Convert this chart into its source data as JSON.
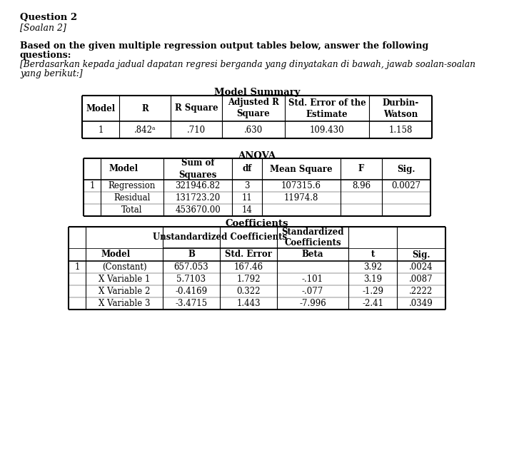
{
  "title_bold": "Question 2",
  "title_italic": "[Soalan 2]",
  "body_line1": "Based on the given multiple regression output tables below, answer the following",
  "body_line2": "questions:",
  "body_line3": "[Berdasarkan kepada jadual dapatan regresi berganda yang dinyatakan di bawah, jawab soalan-soalan",
  "body_line4": "yang berikut:]",
  "model_summary_title": "Model Summary",
  "ms_headers": [
    "Model",
    "R",
    "R Square",
    "Adjusted R\nSquare",
    "Std. Error of the\nEstimate",
    "Durbin-\nWatson"
  ],
  "ms_data": [
    [
      "1",
      ".842ᵃ",
      ".710",
      ".630",
      "109.430",
      "1.158"
    ]
  ],
  "anova_title": "ANOVA",
  "anova_headers": [
    "Model",
    "Sum of\nSquares",
    "df",
    "Mean Square",
    "F",
    "Sig."
  ],
  "anova_data": [
    [
      "1",
      "Regression",
      "321946.82",
      "3",
      "107315.6",
      "8.96",
      "0.0027"
    ],
    [
      "",
      "Residual",
      "131723.20",
      "11",
      "11974.8",
      "",
      ""
    ],
    [
      "",
      "Total",
      "453670.00",
      "14",
      "",
      "",
      ""
    ]
  ],
  "coeff_title": "Coefficients",
  "coeff_data": [
    [
      "1",
      "(Constant)",
      "657.053",
      "167.46",
      "",
      "3.92",
      ".0024"
    ],
    [
      "",
      "X Variable 1",
      "5.7103",
      "1.792",
      "-.101",
      "3.19",
      ".0087"
    ],
    [
      "",
      "X Variable 2",
      "-0.4169",
      "0.322",
      "-.077",
      "-1.29",
      ".2222"
    ],
    [
      "",
      "X Variable 3",
      "-3.4715",
      "1.443",
      "-7.996",
      "-2.41",
      ".0349"
    ]
  ],
  "bg_color": "#ffffff",
  "text_color": "#000000"
}
